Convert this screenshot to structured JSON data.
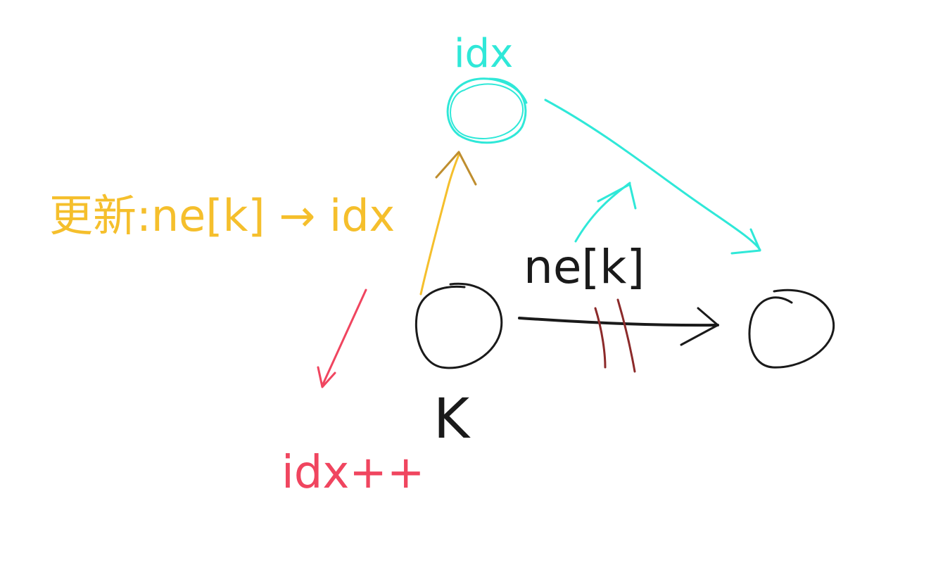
{
  "colors": {
    "cyan": "#2fe8d8",
    "yellow": "#f5bf2c",
    "red": "#f0455f",
    "black": "#1a1a1a",
    "brown": "#bf8e2f",
    "darkred": "#8c2a2a"
  },
  "labels": {
    "top_idx": "idx",
    "update_text": "更新:ne[k] → idx",
    "ne_k": "ne[k]",
    "k": "K",
    "idx_plus": "idx++"
  },
  "nodes": [
    {
      "id": "new-node",
      "label": "idx",
      "color": "cyan"
    },
    {
      "id": "k-node",
      "label": "K",
      "color": "black"
    },
    {
      "id": "next-node",
      "label": "",
      "color": "black"
    }
  ],
  "edges": [
    {
      "from": "k-node",
      "to": "next-node",
      "label": "ne[k]",
      "color": "black",
      "crossed_out": true
    },
    {
      "from": "new-node",
      "to": "next-node",
      "label": "",
      "color": "cyan"
    },
    {
      "from": "k-node",
      "to": "new-node",
      "label": "",
      "color": "yellow"
    },
    {
      "from": "ne[k]",
      "to": "new-node",
      "label": "",
      "color": "cyan"
    }
  ],
  "icons": {
    "main_arrow": "arrow-right-icon",
    "update_arrow": "arrow-right-icon",
    "idx_arrow": "arrow-down-left-icon"
  }
}
